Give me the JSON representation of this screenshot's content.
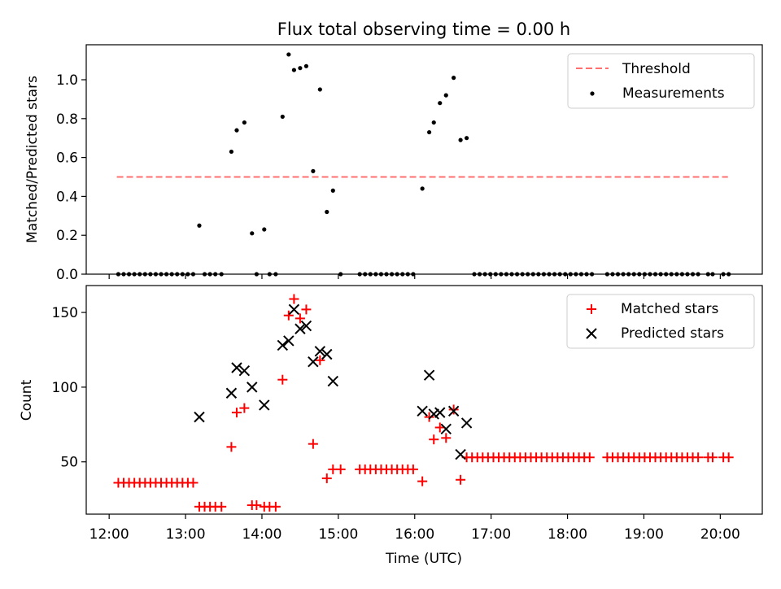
{
  "figure": {
    "title": "Flux total observing time = 0.00 h",
    "xlabel": "Time (UTC)",
    "x_tick_labels": [
      "12:00",
      "13:00",
      "14:00",
      "15:00",
      "16:00",
      "17:00",
      "18:00",
      "19:00",
      "20:00"
    ]
  },
  "chart_data": [
    {
      "type": "scatter",
      "ylabel": "Matched/Predicted stars",
      "xlim_hours": [
        11.7,
        20.55
      ],
      "ylim": [
        0,
        1.18
      ],
      "y_ticks": [
        "0.0",
        "0.2",
        "0.4",
        "0.6",
        "0.8",
        "1.0"
      ],
      "y_tick_values": [
        0,
        0.2,
        0.4,
        0.6,
        0.8,
        1.0
      ],
      "legend_position": "top-right",
      "threshold": {
        "name": "Threshold",
        "value": 0.5,
        "x_range": [
          12.1,
          20.1
        ],
        "color": "#ff7070",
        "style": "dashed"
      },
      "series": [
        {
          "name": "Measurements",
          "color": "#000000",
          "marker": "dot",
          "points": [
            [
              12.12,
              0
            ],
            [
              12.19,
              0
            ],
            [
              12.26,
              0
            ],
            [
              12.33,
              0
            ],
            [
              12.4,
              0
            ],
            [
              12.47,
              0
            ],
            [
              12.54,
              0
            ],
            [
              12.61,
              0
            ],
            [
              12.68,
              0
            ],
            [
              12.75,
              0
            ],
            [
              12.82,
              0
            ],
            [
              12.89,
              0
            ],
            [
              12.96,
              0
            ],
            [
              13.03,
              0
            ],
            [
              13.1,
              0
            ],
            [
              13.18,
              0.25
            ],
            [
              13.25,
              0
            ],
            [
              13.32,
              0
            ],
            [
              13.39,
              0
            ],
            [
              13.47,
              0
            ],
            [
              13.6,
              0.63
            ],
            [
              13.67,
              0.74
            ],
            [
              13.77,
              0.78
            ],
            [
              13.87,
              0.21
            ],
            [
              13.93,
              0
            ],
            [
              14.03,
              0.23
            ],
            [
              14.1,
              0
            ],
            [
              14.18,
              0
            ],
            [
              14.27,
              0.81
            ],
            [
              14.35,
              1.13
            ],
            [
              14.42,
              1.05
            ],
            [
              14.5,
              1.06
            ],
            [
              14.58,
              1.07
            ],
            [
              14.67,
              0.53
            ],
            [
              14.76,
              0.95
            ],
            [
              14.85,
              0.32
            ],
            [
              14.93,
              0.43
            ],
            [
              15.03,
              0
            ],
            [
              15.28,
              0
            ],
            [
              15.35,
              0
            ],
            [
              15.42,
              0
            ],
            [
              15.49,
              0
            ],
            [
              15.56,
              0
            ],
            [
              15.63,
              0
            ],
            [
              15.7,
              0
            ],
            [
              15.77,
              0
            ],
            [
              15.84,
              0
            ],
            [
              15.91,
              0
            ],
            [
              15.98,
              0
            ],
            [
              16.1,
              0.44
            ],
            [
              16.19,
              0.73
            ],
            [
              16.25,
              0.78
            ],
            [
              16.33,
              0.88
            ],
            [
              16.41,
              0.92
            ],
            [
              16.51,
              1.01
            ],
            [
              16.6,
              0.69
            ],
            [
              16.68,
              0.7
            ],
            [
              16.78,
              0
            ],
            [
              16.85,
              0
            ],
            [
              16.92,
              0
            ],
            [
              16.99,
              0
            ],
            [
              17.06,
              0
            ],
            [
              17.13,
              0
            ],
            [
              17.2,
              0
            ],
            [
              17.27,
              0
            ],
            [
              17.34,
              0
            ],
            [
              17.41,
              0
            ],
            [
              17.48,
              0
            ],
            [
              17.55,
              0
            ],
            [
              17.62,
              0
            ],
            [
              17.69,
              0
            ],
            [
              17.76,
              0
            ],
            [
              17.83,
              0
            ],
            [
              17.9,
              0
            ],
            [
              17.97,
              0
            ],
            [
              18.04,
              0
            ],
            [
              18.11,
              0
            ],
            [
              18.18,
              0
            ],
            [
              18.25,
              0
            ],
            [
              18.32,
              0
            ],
            [
              18.52,
              0
            ],
            [
              18.59,
              0
            ],
            [
              18.66,
              0
            ],
            [
              18.73,
              0
            ],
            [
              18.8,
              0
            ],
            [
              18.87,
              0
            ],
            [
              18.94,
              0
            ],
            [
              19.01,
              0
            ],
            [
              19.08,
              0
            ],
            [
              19.15,
              0
            ],
            [
              19.22,
              0
            ],
            [
              19.29,
              0
            ],
            [
              19.36,
              0
            ],
            [
              19.43,
              0
            ],
            [
              19.5,
              0
            ],
            [
              19.57,
              0
            ],
            [
              19.64,
              0
            ],
            [
              19.71,
              0
            ],
            [
              19.84,
              0
            ],
            [
              19.9,
              0
            ],
            [
              20.04,
              0
            ],
            [
              20.11,
              0
            ]
          ]
        }
      ]
    },
    {
      "type": "scatter",
      "ylabel": "Count",
      "xlim_hours": [
        11.7,
        20.55
      ],
      "ylim": [
        15,
        168
      ],
      "y_ticks": [
        "50",
        "100",
        "150"
      ],
      "y_tick_values": [
        50,
        100,
        150
      ],
      "legend_position": "top-right",
      "series": [
        {
          "name": "Matched stars",
          "color": "#ff0000",
          "marker": "plus",
          "points": [
            [
              12.12,
              36
            ],
            [
              12.19,
              36
            ],
            [
              12.26,
              36
            ],
            [
              12.33,
              36
            ],
            [
              12.4,
              36
            ],
            [
              12.47,
              36
            ],
            [
              12.54,
              36
            ],
            [
              12.61,
              36
            ],
            [
              12.68,
              36
            ],
            [
              12.75,
              36
            ],
            [
              12.82,
              36
            ],
            [
              12.89,
              36
            ],
            [
              12.96,
              36
            ],
            [
              13.03,
              36
            ],
            [
              13.1,
              36
            ],
            [
              13.18,
              20
            ],
            [
              13.25,
              20
            ],
            [
              13.32,
              20
            ],
            [
              13.39,
              20
            ],
            [
              13.47,
              20
            ],
            [
              13.6,
              60
            ],
            [
              13.67,
              83
            ],
            [
              13.77,
              86
            ],
            [
              13.87,
              21
            ],
            [
              13.93,
              21
            ],
            [
              14.03,
              20
            ],
            [
              14.1,
              20
            ],
            [
              14.18,
              20
            ],
            [
              14.27,
              105
            ],
            [
              14.35,
              148
            ],
            [
              14.42,
              159
            ],
            [
              14.5,
              146
            ],
            [
              14.58,
              152
            ],
            [
              14.67,
              62
            ],
            [
              14.76,
              118
            ],
            [
              14.85,
              39
            ],
            [
              14.93,
              45
            ],
            [
              15.03,
              45
            ],
            [
              15.28,
              45
            ],
            [
              15.35,
              45
            ],
            [
              15.42,
              45
            ],
            [
              15.49,
              45
            ],
            [
              15.56,
              45
            ],
            [
              15.63,
              45
            ],
            [
              15.7,
              45
            ],
            [
              15.77,
              45
            ],
            [
              15.84,
              45
            ],
            [
              15.91,
              45
            ],
            [
              15.98,
              45
            ],
            [
              16.1,
              37
            ],
            [
              16.19,
              80
            ],
            [
              16.25,
              65
            ],
            [
              16.33,
              73
            ],
            [
              16.41,
              66
            ],
            [
              16.51,
              85
            ],
            [
              16.6,
              38
            ],
            [
              16.68,
              53
            ],
            [
              16.75,
              53
            ],
            [
              16.82,
              53
            ],
            [
              16.89,
              53
            ],
            [
              16.96,
              53
            ],
            [
              17.03,
              53
            ],
            [
              17.1,
              53
            ],
            [
              17.17,
              53
            ],
            [
              17.24,
              53
            ],
            [
              17.31,
              53
            ],
            [
              17.38,
              53
            ],
            [
              17.45,
              53
            ],
            [
              17.52,
              53
            ],
            [
              17.59,
              53
            ],
            [
              17.66,
              53
            ],
            [
              17.73,
              53
            ],
            [
              17.8,
              53
            ],
            [
              17.87,
              53
            ],
            [
              17.94,
              53
            ],
            [
              18.01,
              53
            ],
            [
              18.08,
              53
            ],
            [
              18.15,
              53
            ],
            [
              18.22,
              53
            ],
            [
              18.29,
              53
            ],
            [
              18.52,
              53
            ],
            [
              18.59,
              53
            ],
            [
              18.66,
              53
            ],
            [
              18.73,
              53
            ],
            [
              18.8,
              53
            ],
            [
              18.87,
              53
            ],
            [
              18.94,
              53
            ],
            [
              19.01,
              53
            ],
            [
              19.08,
              53
            ],
            [
              19.15,
              53
            ],
            [
              19.22,
              53
            ],
            [
              19.29,
              53
            ],
            [
              19.36,
              53
            ],
            [
              19.43,
              53
            ],
            [
              19.5,
              53
            ],
            [
              19.57,
              53
            ],
            [
              19.64,
              53
            ],
            [
              19.71,
              53
            ],
            [
              19.84,
              53
            ],
            [
              19.9,
              53
            ],
            [
              20.04,
              53
            ],
            [
              20.11,
              53
            ]
          ]
        },
        {
          "name": "Predicted stars",
          "color": "#000000",
          "marker": "x",
          "points": [
            [
              13.18,
              80
            ],
            [
              13.6,
              96
            ],
            [
              13.67,
              113
            ],
            [
              13.77,
              111
            ],
            [
              13.87,
              100
            ],
            [
              14.03,
              88
            ],
            [
              14.27,
              128
            ],
            [
              14.35,
              131
            ],
            [
              14.42,
              152
            ],
            [
              14.5,
              139
            ],
            [
              14.58,
              141
            ],
            [
              14.67,
              117
            ],
            [
              14.76,
              124
            ],
            [
              14.85,
              122
            ],
            [
              14.93,
              104
            ],
            [
              16.1,
              84
            ],
            [
              16.19,
              108
            ],
            [
              16.25,
              82
            ],
            [
              16.33,
              83
            ],
            [
              16.41,
              72
            ],
            [
              16.51,
              84
            ],
            [
              16.6,
              55
            ],
            [
              16.68,
              76
            ]
          ]
        }
      ]
    }
  ]
}
